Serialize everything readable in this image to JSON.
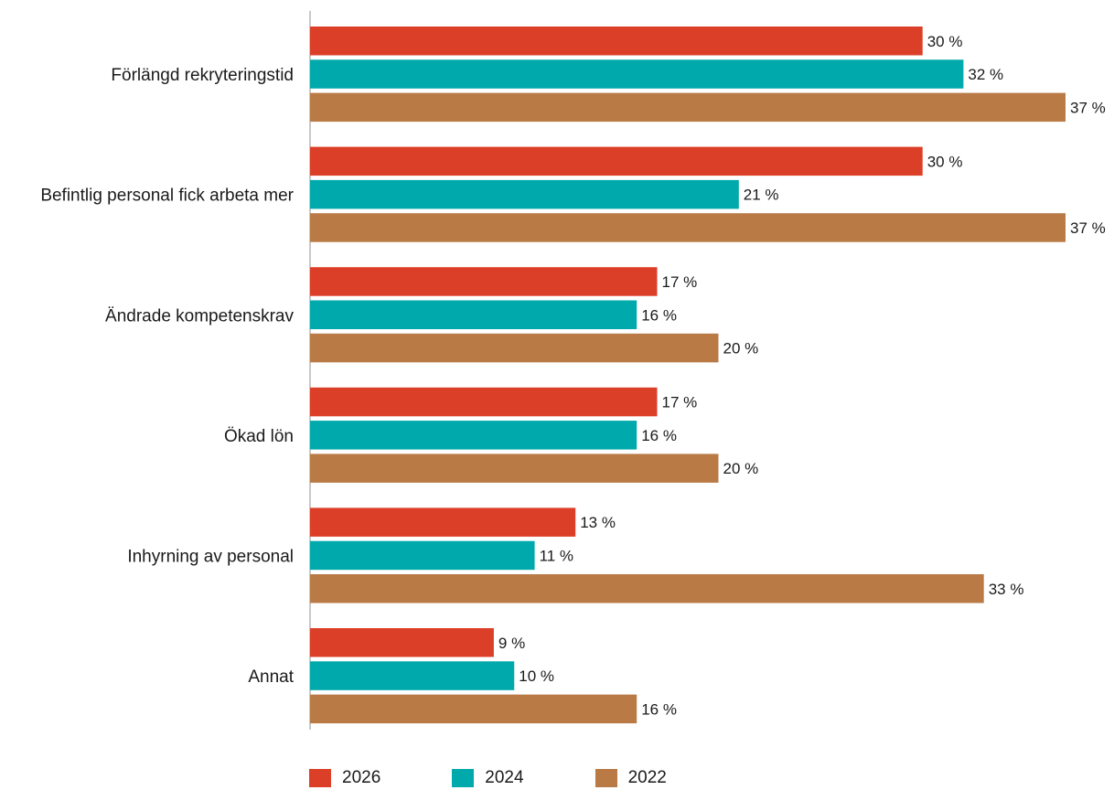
{
  "chart_data": {
    "type": "bar",
    "orientation": "horizontal",
    "categories": [
      "Förlängd rekryteringstid",
      "Befintlig personal fick arbeta mer",
      "Ändrade kompetenskrav",
      "Ökad lön",
      "Inhyrning av personal",
      "Annat"
    ],
    "series": [
      {
        "name": "2026",
        "color": "#dc3f28",
        "values": [
          30,
          30,
          17,
          17,
          13,
          9
        ],
        "labels": [
          "30 %",
          "30 %",
          "17 %",
          "17 %",
          "13 %",
          "9 %"
        ]
      },
      {
        "name": "2024",
        "color": "#00a9ab",
        "values": [
          32,
          21,
          16,
          16,
          11,
          10
        ],
        "labels": [
          "32 %",
          "21 %",
          "16 %",
          "16 %",
          "11 %",
          "10 %"
        ]
      },
      {
        "name": "2022",
        "color": "#b97a45",
        "values": [
          37,
          37,
          20,
          20,
          33,
          16
        ],
        "labels": [
          "37 %",
          "37 %",
          "20 %",
          "20 %",
          "33 %",
          "16 %"
        ]
      }
    ],
    "xlim": [
      0,
      37
    ],
    "grid": false,
    "legend_position": "bottom-left"
  }
}
